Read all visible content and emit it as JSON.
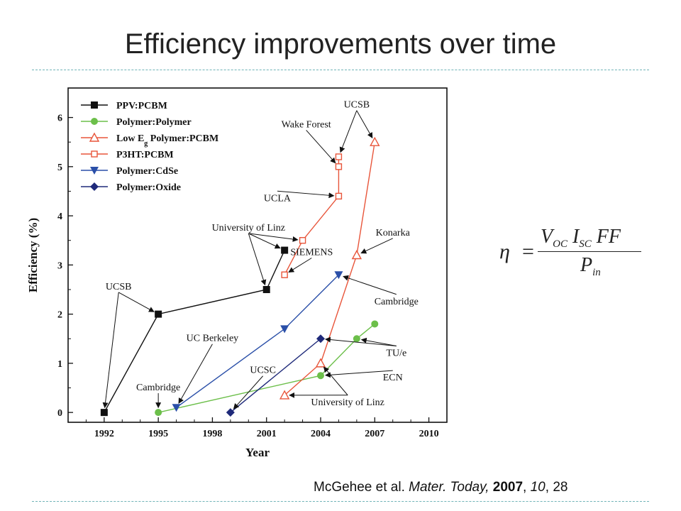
{
  "slide": {
    "title": "Efficiency improvements over time",
    "citation": {
      "authors": "McGehee et al.",
      "journal": "Mater. Today,",
      "year": "2007",
      "volume": "10",
      "page": "28"
    },
    "formula": {
      "lhs": "η",
      "equals": "=",
      "num_v": "V",
      "num_voc_sub": "OC",
      "num_i": "I",
      "num_isc_sub": "SC",
      "num_ff": "FF",
      "den_p": "P",
      "den_sub": "in"
    }
  },
  "chart_data": {
    "type": "line",
    "xlabel": "Year",
    "ylabel": "Efficiency (%)",
    "xlim": [
      1990,
      2011
    ],
    "ylim": [
      -0.2,
      6.6
    ],
    "xticks": [
      1992,
      1995,
      1998,
      2001,
      2004,
      2007,
      2010
    ],
    "yticks": [
      0,
      1,
      2,
      3,
      4,
      5,
      6
    ],
    "legend_position": "top-left",
    "series": [
      {
        "name": "PPV:PCBM",
        "color": "#111111",
        "marker": "square-filled",
        "points": [
          [
            1992,
            0.0
          ],
          [
            1995,
            2.0
          ],
          [
            2001,
            2.5
          ],
          [
            2002,
            3.3
          ]
        ]
      },
      {
        "name": "Polymer:Polymer",
        "color": "#6cbf4a",
        "marker": "circle-filled",
        "points": [
          [
            1995,
            0.0
          ],
          [
            2004,
            0.75
          ],
          [
            2006,
            1.5
          ],
          [
            2007,
            1.8
          ]
        ]
      },
      {
        "name": "Low E",
        "name_sub": "g",
        "name_suffix": " Polymer:PCBM",
        "color": "#e8553a",
        "marker": "triangle-open",
        "points": [
          [
            2002,
            0.35
          ],
          [
            2004,
            1.0
          ],
          [
            2006,
            3.2
          ],
          [
            2007,
            5.5
          ]
        ]
      },
      {
        "name": "P3HT:PCBM",
        "color": "#e8553a",
        "marker": "square-open",
        "points": [
          [
            2002,
            2.8
          ],
          [
            2003,
            3.5
          ],
          [
            2005,
            4.4
          ],
          [
            2005,
            5.0
          ],
          [
            2005,
            5.2
          ]
        ]
      },
      {
        "name": "Polymer:CdSe",
        "color": "#2a4fa8",
        "marker": "triangle-down-filled",
        "points": [
          [
            1996,
            0.1
          ],
          [
            2002,
            1.7
          ],
          [
            2005,
            2.8
          ]
        ]
      },
      {
        "name": "Polymer:Oxide",
        "color": "#1f2a7a",
        "marker": "diamond-filled",
        "points": [
          [
            1999,
            0.0
          ],
          [
            2004,
            1.5
          ]
        ]
      }
    ],
    "annotations": [
      {
        "text": "UCSB",
        "at": [
          1992.8,
          2.5
        ],
        "targets": [
          [
            1992,
            0.0
          ],
          [
            1995,
            2.0
          ]
        ]
      },
      {
        "text": "Cambridge",
        "at": [
          1995.0,
          0.45
        ],
        "targets": [
          [
            1995,
            0.0
          ]
        ]
      },
      {
        "text": "UC Berkeley",
        "at": [
          1998.0,
          1.45
        ],
        "targets": [
          [
            1996,
            0.1
          ]
        ]
      },
      {
        "text": "UCSC",
        "at": [
          2000.8,
          0.8
        ],
        "targets": [
          [
            1999,
            0.0
          ]
        ]
      },
      {
        "text": "University of Linz",
        "at": [
          2000.0,
          3.7
        ],
        "targets": [
          [
            2001,
            2.5
          ],
          [
            2002,
            3.3
          ],
          [
            2003,
            3.5
          ]
        ]
      },
      {
        "text": "SIEMENS",
        "at": [
          2003.5,
          3.2
        ],
        "targets": [
          [
            2002,
            2.8
          ]
        ]
      },
      {
        "text": "UCLA",
        "at": [
          2001.6,
          4.3
        ],
        "targets": [
          [
            2005,
            4.4
          ]
        ]
      },
      {
        "text": "Wake Forest",
        "at": [
          2003.2,
          5.8
        ],
        "targets": [
          [
            2005,
            5.0
          ]
        ]
      },
      {
        "text": "UCSB",
        "at": [
          2006.0,
          6.2
        ],
        "targets": [
          [
            2005,
            5.2
          ],
          [
            2007,
            5.5
          ]
        ]
      },
      {
        "text": "Konarka",
        "at": [
          2008.0,
          3.6
        ],
        "targets": [
          [
            2006,
            3.2
          ]
        ]
      },
      {
        "text": "Cambridge",
        "at": [
          2008.2,
          2.2
        ],
        "targets": [
          [
            2005,
            2.8
          ]
        ]
      },
      {
        "text": "TU/e",
        "at": [
          2008.2,
          1.15
        ],
        "targets": [
          [
            2004,
            1.5
          ],
          [
            2006,
            1.5
          ]
        ]
      },
      {
        "text": "ECN",
        "at": [
          2008.0,
          0.65
        ],
        "targets": [
          [
            2004,
            0.75
          ]
        ]
      },
      {
        "text": "University of Linz",
        "at": [
          2005.5,
          0.15
        ],
        "targets": [
          [
            2002,
            0.35
          ],
          [
            2004,
            1.0
          ]
        ]
      }
    ]
  }
}
